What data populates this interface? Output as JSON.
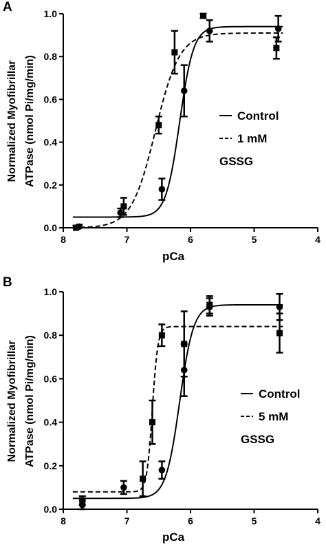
{
  "chart_data": [
    {
      "panel": "A",
      "type": "scatter",
      "xlabel": "pCa",
      "ylabel": [
        "Normalized Myofibrillar",
        "ATPase (nmol Pi/mg/min)"
      ],
      "xlim": [
        8,
        4
      ],
      "ylim": [
        0,
        1.0
      ],
      "xticks": [
        "8",
        "7",
        "6",
        "5",
        "4"
      ],
      "yticks": [
        "0.0",
        "0.2",
        "0.4",
        "0.6",
        "0.8",
        "1.0"
      ],
      "legend_lines": [
        {
          "style": "solid",
          "text": "Control"
        },
        {
          "style": "dashed",
          "text": "1 mM"
        },
        {
          "style": "none",
          "text": "GSSG"
        }
      ],
      "series": [
        {
          "label": "Control",
          "marker": "circle",
          "line": "solid",
          "fit": {
            "bottom": 0.05,
            "top": 0.94,
            "pCa50": 6.17,
            "hill": 4.0
          },
          "points": [
            {
              "x": 7.75,
              "y": 0.005,
              "err": 0.01
            },
            {
              "x": 7.1,
              "y": 0.07,
              "err": 0.02
            },
            {
              "x": 6.45,
              "y": 0.18,
              "err": 0.05
            },
            {
              "x": 6.1,
              "y": 0.64,
              "err": 0.12
            },
            {
              "x": 5.7,
              "y": 0.92,
              "err": 0.05
            },
            {
              "x": 4.62,
              "y": 0.93,
              "err": 0.06
            }
          ]
        },
        {
          "label": "1 mM GSSG",
          "marker": "square",
          "line": "dashed",
          "fit": {
            "bottom": 0.0,
            "top": 0.91,
            "pCa50": 6.55,
            "hill": 2.3
          },
          "points": [
            {
              "x": 7.8,
              "y": 0.0,
              "err": 0.01
            },
            {
              "x": 7.05,
              "y": 0.1,
              "err": 0.04
            },
            {
              "x": 6.5,
              "y": 0.48,
              "err": 0.04
            },
            {
              "x": 6.25,
              "y": 0.82,
              "err": 0.1
            },
            {
              "x": 5.8,
              "y": 0.99,
              "err": 0.01
            },
            {
              "x": 4.65,
              "y": 0.84,
              "err": 0.05
            }
          ]
        }
      ]
    },
    {
      "panel": "B",
      "type": "scatter",
      "xlabel": "pCa",
      "ylabel": [
        "Normalized Myofibrillar",
        "ATPase (nmol Pi/mg/min)"
      ],
      "xlim": [
        8,
        4
      ],
      "ylim": [
        0,
        1.0
      ],
      "xticks": [
        "8",
        "7",
        "6",
        "5",
        "4"
      ],
      "yticks": [
        "0.0",
        "0.2",
        "0.4",
        "0.6",
        "0.8",
        "1.0"
      ],
      "legend_lines": [
        {
          "style": "solid",
          "text": "Control"
        },
        {
          "style": "dashed",
          "text": "5 mM"
        },
        {
          "style": "none",
          "text": "GSSG"
        }
      ],
      "series": [
        {
          "label": "Control",
          "marker": "circle",
          "line": "solid",
          "fit": {
            "bottom": 0.05,
            "top": 0.94,
            "pCa50": 6.17,
            "hill": 4.0
          },
          "points": [
            {
              "x": 7.7,
              "y": 0.02,
              "err": 0.02
            },
            {
              "x": 7.05,
              "y": 0.1,
              "err": 0.03
            },
            {
              "x": 6.45,
              "y": 0.18,
              "err": 0.04
            },
            {
              "x": 6.1,
              "y": 0.64,
              "err": 0.12
            },
            {
              "x": 5.7,
              "y": 0.93,
              "err": 0.04
            },
            {
              "x": 4.6,
              "y": 0.93,
              "err": 0.06
            }
          ]
        },
        {
          "label": "5 mM GSSG",
          "marker": "square",
          "line": "dashed",
          "fit": {
            "bottom": 0.08,
            "top": 0.84,
            "pCa50": 6.6,
            "hill": 10.0
          },
          "points": [
            {
              "x": 7.7,
              "y": 0.04,
              "err": 0.02
            },
            {
              "x": 6.75,
              "y": 0.14,
              "err": 0.08
            },
            {
              "x": 6.6,
              "y": 0.4,
              "err": 0.1
            },
            {
              "x": 6.45,
              "y": 0.8,
              "err": 0.05
            },
            {
              "x": 6.1,
              "y": 0.76,
              "err": 0.15
            },
            {
              "x": 5.7,
              "y": 0.94,
              "err": 0.04
            },
            {
              "x": 4.6,
              "y": 0.81,
              "err": 0.09
            }
          ]
        }
      ]
    }
  ]
}
